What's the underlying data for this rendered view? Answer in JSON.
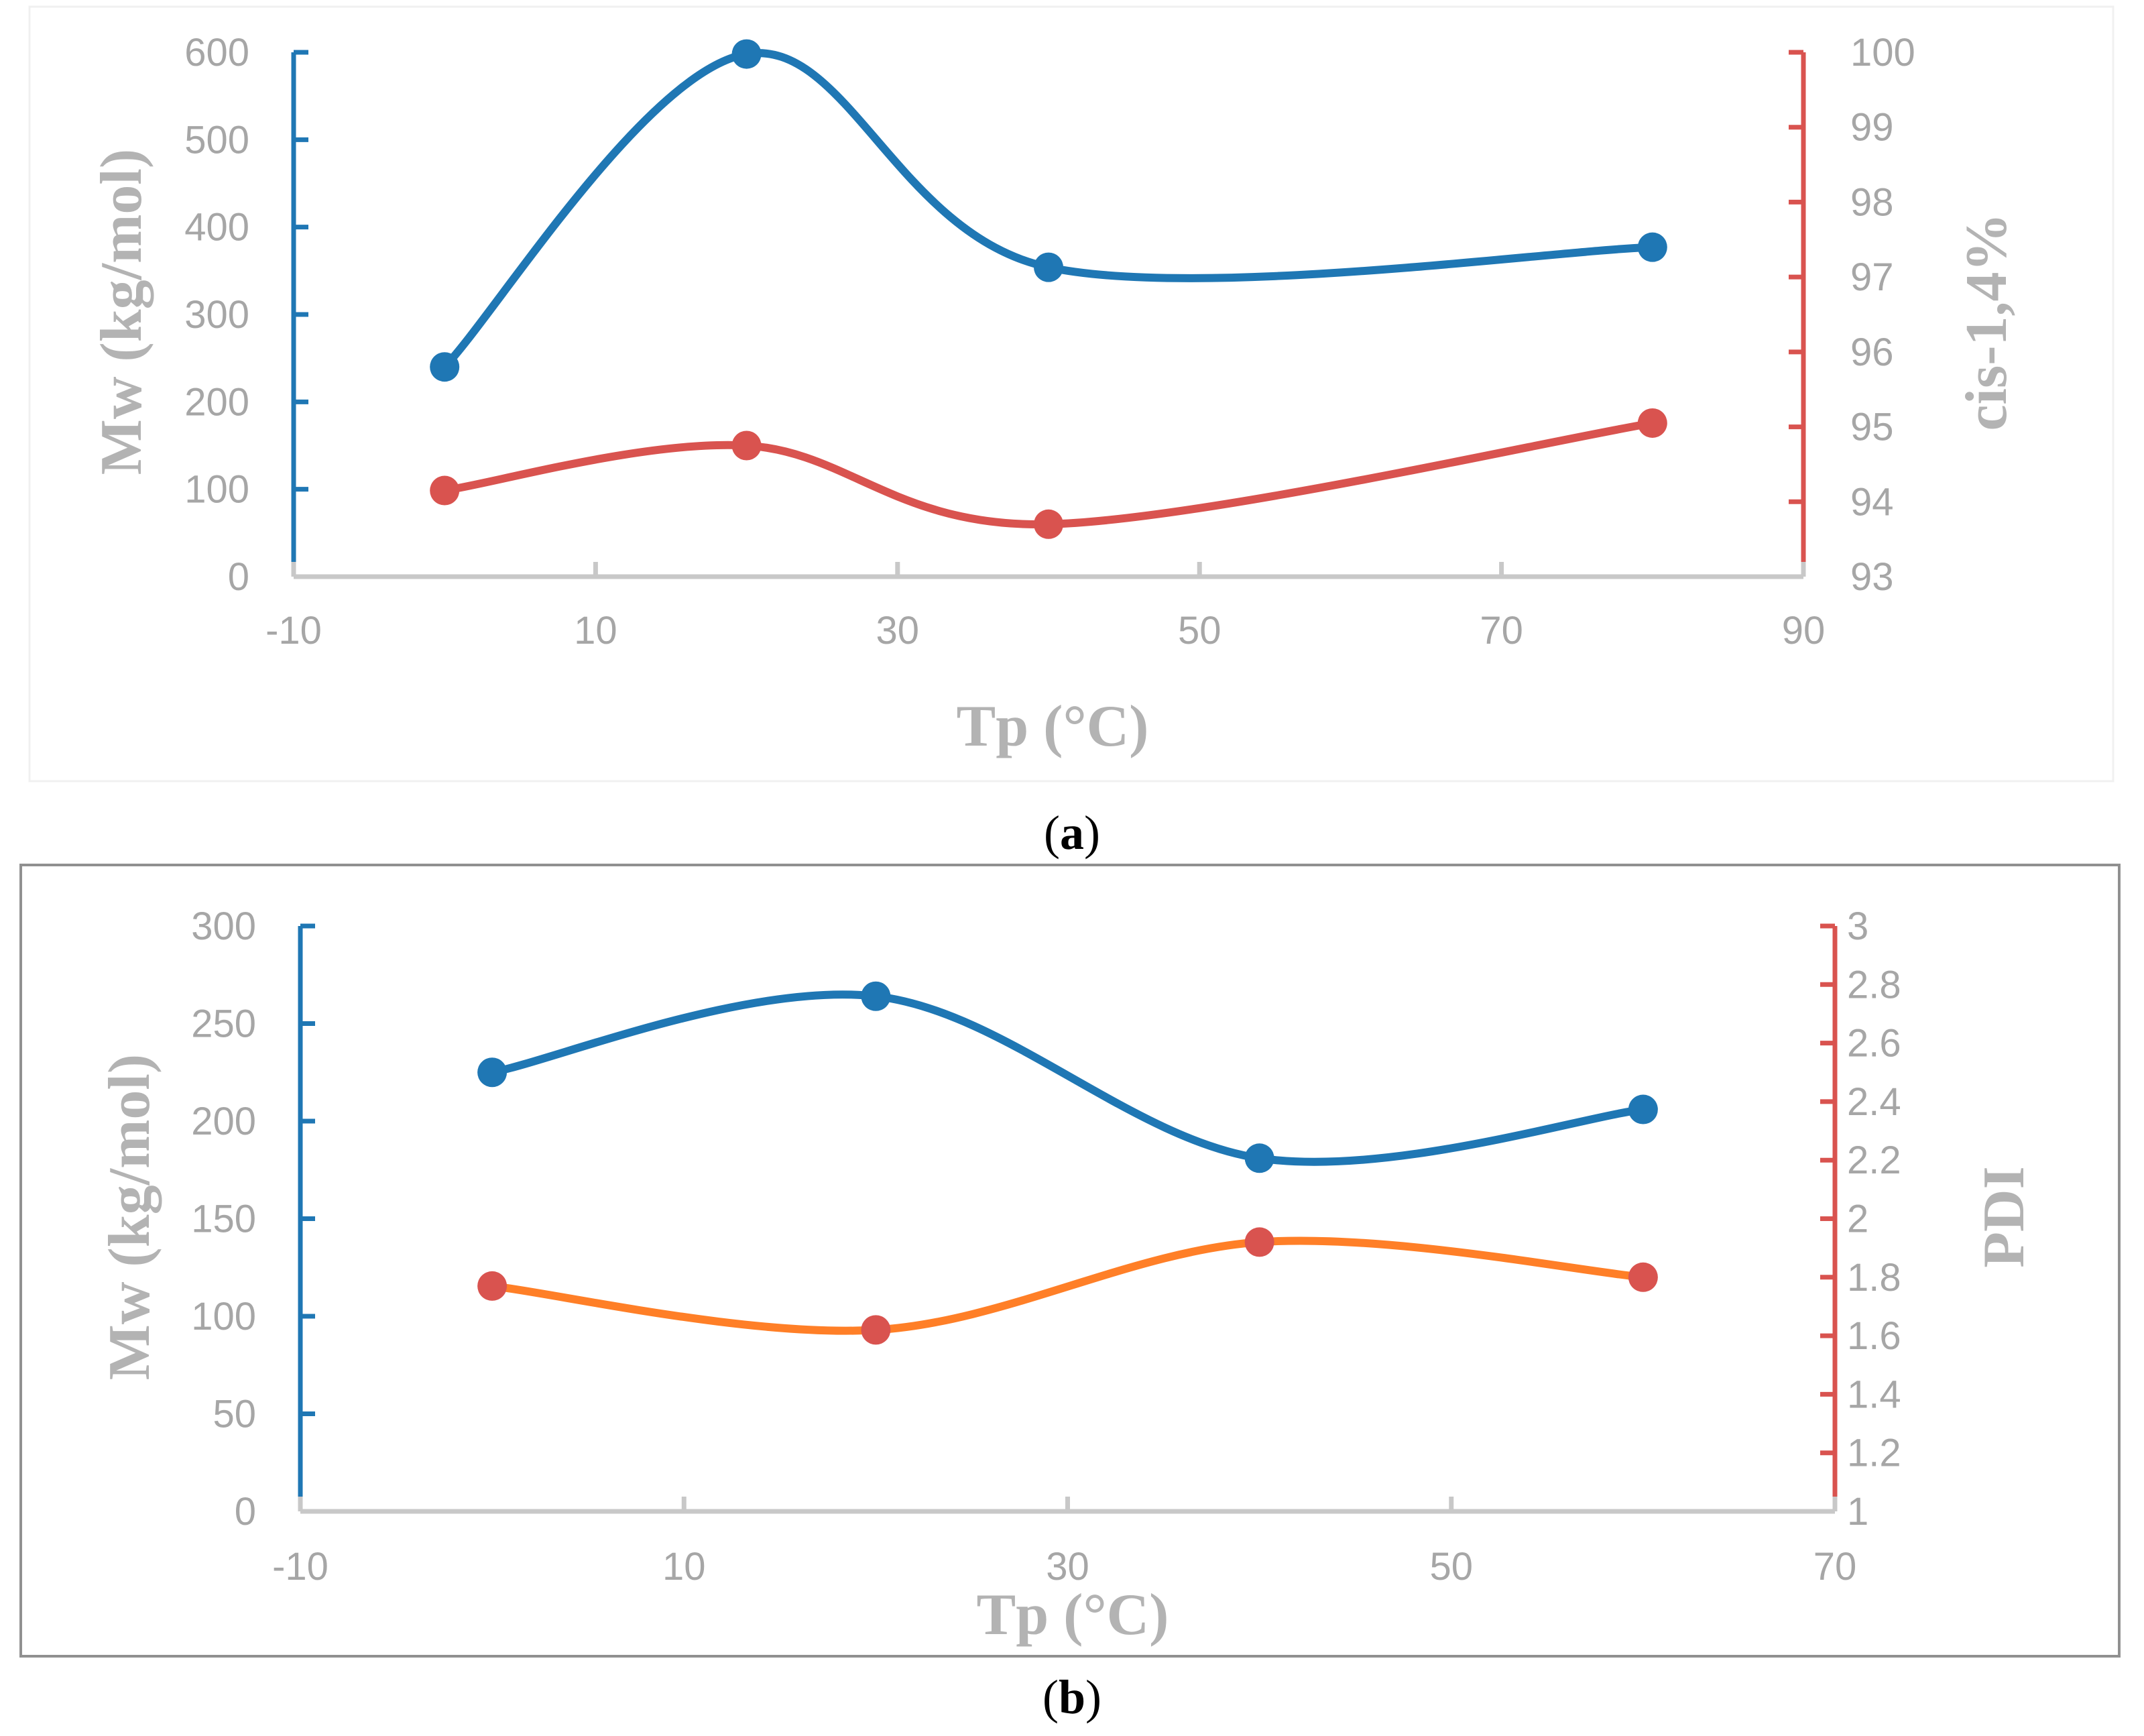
{
  "colors": {
    "blue": "#1f77b4",
    "red": "#d9534f",
    "orange": "#ff7f27",
    "axis_gray": "#c8c8c8",
    "text_gray": "#a6a6a6"
  },
  "chart_data": [
    {
      "type": "line",
      "panel": "a",
      "xlabel": "Tp (°C)",
      "ylabel": "Mw (kg/mol)",
      "y2label": "cis-1,4%",
      "xlim": [
        -10,
        90
      ],
      "xticks": [
        "-10",
        "10",
        "30",
        "50",
        "70",
        "90"
      ],
      "ylim": [
        0,
        600
      ],
      "yticks": [
        "0",
        "100",
        "200",
        "300",
        "400",
        "500",
        "600"
      ],
      "y2lim": [
        93,
        100
      ],
      "y2ticks": [
        "93",
        "94",
        "95",
        "96",
        "97",
        "98",
        "99",
        "100"
      ],
      "series": [
        {
          "name": "Mw",
          "axis": "left",
          "x": [
            0,
            20,
            40,
            80
          ],
          "values": [
            240,
            598,
            354,
            377
          ]
        },
        {
          "name": "cis-1,4%",
          "axis": "right",
          "x": [
            0,
            20,
            40,
            80
          ],
          "values": [
            94.15,
            94.75,
            93.7,
            95.05
          ]
        }
      ]
    },
    {
      "type": "line",
      "panel": "b",
      "xlabel": "Tp (°C)",
      "ylabel": "Mw (kg/mol)",
      "y2label": "PDI",
      "xlim": [
        -10,
        70
      ],
      "xticks": [
        "-10",
        "10",
        "30",
        "50",
        "70"
      ],
      "ylim": [
        0,
        300
      ],
      "yticks": [
        "0",
        "50",
        "100",
        "150",
        "200",
        "250",
        "300"
      ],
      "y2lim": [
        1,
        3
      ],
      "y2ticks": [
        "1",
        "1.2",
        "1.4",
        "1.6",
        "1.8",
        "2",
        "2.2",
        "2.4",
        "2.6",
        "2.8",
        "3"
      ],
      "series": [
        {
          "name": "Mw",
          "axis": "left",
          "x": [
            0,
            20,
            40,
            60
          ],
          "values": [
            225,
            264,
            181,
            206
          ]
        },
        {
          "name": "PDI",
          "axis": "right",
          "x": [
            0,
            20,
            40,
            60
          ],
          "values": [
            1.77,
            1.62,
            1.92,
            1.8
          ]
        }
      ]
    }
  ],
  "captions": {
    "a": {
      "open": "(",
      "letter": "a",
      "close": ")"
    },
    "b": {
      "open": "(",
      "letter": "b",
      "close": ")"
    }
  }
}
